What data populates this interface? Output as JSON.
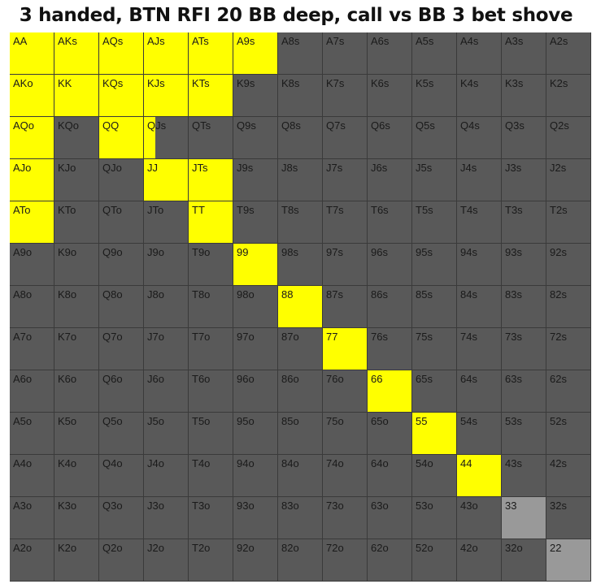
{
  "chart_data": {
    "type": "heatmap",
    "title": "3 handed, BTN RFI 20 BB deep, call vs BB 3 bet shove",
    "ranks": [
      "A",
      "K",
      "Q",
      "J",
      "T",
      "9",
      "8",
      "7",
      "6",
      "5",
      "4",
      "3",
      "2"
    ],
    "hands": [
      [
        "AA",
        "AKs",
        "AQs",
        "AJs",
        "ATs",
        "A9s",
        "A8s",
        "A7s",
        "A6s",
        "A5s",
        "A4s",
        "A3s",
        "A2s"
      ],
      [
        "AKo",
        "KK",
        "KQs",
        "KJs",
        "KTs",
        "K9s",
        "K8s",
        "K7s",
        "K6s",
        "K5s",
        "K4s",
        "K3s",
        "K2s"
      ],
      [
        "AQo",
        "KQo",
        "QQ",
        "QJs",
        "QTs",
        "Q9s",
        "Q8s",
        "Q7s",
        "Q6s",
        "Q5s",
        "Q4s",
        "Q3s",
        "Q2s"
      ],
      [
        "AJo",
        "KJo",
        "QJo",
        "JJ",
        "JTs",
        "J9s",
        "J8s",
        "J7s",
        "J6s",
        "J5s",
        "J4s",
        "J3s",
        "J2s"
      ],
      [
        "ATo",
        "KTo",
        "QTo",
        "JTo",
        "TT",
        "T9s",
        "T8s",
        "T7s",
        "T6s",
        "T5s",
        "T4s",
        "T3s",
        "T2s"
      ],
      [
        "A9o",
        "K9o",
        "Q9o",
        "J9o",
        "T9o",
        "99",
        "98s",
        "97s",
        "96s",
        "95s",
        "94s",
        "93s",
        "92s"
      ],
      [
        "A8o",
        "K8o",
        "Q8o",
        "J8o",
        "T8o",
        "98o",
        "88",
        "87s",
        "86s",
        "85s",
        "84s",
        "83s",
        "82s"
      ],
      [
        "A7o",
        "K7o",
        "Q7o",
        "J7o",
        "T7o",
        "97o",
        "87o",
        "77",
        "76s",
        "75s",
        "74s",
        "73s",
        "72s"
      ],
      [
        "A6o",
        "K6o",
        "Q6o",
        "J6o",
        "T6o",
        "96o",
        "86o",
        "76o",
        "66",
        "65s",
        "64s",
        "63s",
        "62s"
      ],
      [
        "A5o",
        "K5o",
        "Q5o",
        "J5o",
        "T5o",
        "95o",
        "85o",
        "75o",
        "65o",
        "55",
        "54s",
        "53s",
        "52s"
      ],
      [
        "A4o",
        "K4o",
        "Q4o",
        "J4o",
        "T4o",
        "94o",
        "84o",
        "74o",
        "64o",
        "54o",
        "44",
        "43s",
        "42s"
      ],
      [
        "A3o",
        "K3o",
        "Q3o",
        "J3o",
        "T3o",
        "93o",
        "83o",
        "73o",
        "63o",
        "53o",
        "43o",
        "33",
        "32s"
      ],
      [
        "A2o",
        "K2o",
        "Q2o",
        "J2o",
        "T2o",
        "92o",
        "82o",
        "72o",
        "62o",
        "52o",
        "42o",
        "32o",
        "22"
      ]
    ],
    "call_frequency": [
      [
        1,
        1,
        1,
        1,
        1,
        1,
        0,
        0,
        0,
        0,
        0,
        0,
        0
      ],
      [
        1,
        1,
        1,
        1,
        1,
        0,
        0,
        0,
        0,
        0,
        0,
        0,
        0
      ],
      [
        1,
        0,
        1,
        0.25,
        0,
        0,
        0,
        0,
        0,
        0,
        0,
        0,
        0
      ],
      [
        1,
        0,
        0,
        1,
        1,
        0,
        0,
        0,
        0,
        0,
        0,
        0,
        0
      ],
      [
        1,
        0,
        0,
        0,
        1,
        0,
        0,
        0,
        0,
        0,
        0,
        0,
        0
      ],
      [
        0,
        0,
        0,
        0,
        0,
        1,
        0,
        0,
        0,
        0,
        0,
        0,
        0
      ],
      [
        0,
        0,
        0,
        0,
        0,
        0,
        1,
        0,
        0,
        0,
        0,
        0,
        0
      ],
      [
        0,
        0,
        0,
        0,
        0,
        0,
        0,
        1,
        0,
        0,
        0,
        0,
        0
      ],
      [
        0,
        0,
        0,
        0,
        0,
        0,
        0,
        0,
        1,
        0,
        0,
        0,
        0
      ],
      [
        0,
        0,
        0,
        0,
        0,
        0,
        0,
        0,
        0,
        1,
        0,
        0,
        0
      ],
      [
        0,
        0,
        0,
        0,
        0,
        0,
        0,
        0,
        0,
        0,
        1,
        0,
        0
      ],
      [
        0,
        0,
        0,
        0,
        0,
        0,
        0,
        0,
        0,
        0,
        0,
        0,
        0
      ],
      [
        0,
        0,
        0,
        0,
        0,
        0,
        0,
        0,
        0,
        0,
        0,
        0,
        0
      ]
    ],
    "colors": {
      "call": "#ffff00",
      "fold": "#595959",
      "light_grey": "#999999",
      "label": "#1a1a1a",
      "grid_line": "#3a3a3a"
    },
    "light_grey_cells": [
      "33",
      "22"
    ]
  }
}
